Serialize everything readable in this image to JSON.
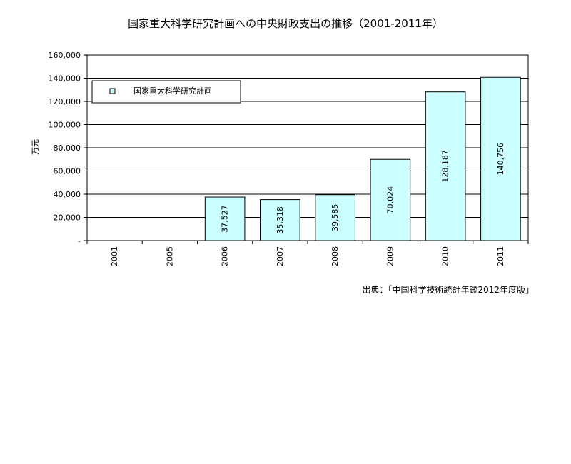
{
  "chart_data": {
    "type": "bar",
    "title": "国家重大科学研究計画への中央財政支出の推移（2001-2011年）",
    "xlabel": "",
    "ylabel": "万元",
    "categories": [
      "2001",
      "2005",
      "2006",
      "2007",
      "2008",
      "2009",
      "2010",
      "2011"
    ],
    "series": [
      {
        "name": "国家重大科学研究計画",
        "values": [
          null,
          null,
          37527,
          35318,
          39585,
          70024,
          128187,
          140756
        ],
        "value_labels": [
          "",
          "",
          "37,527",
          "35,318",
          "39,585",
          "70,024",
          "128,187",
          "140,756"
        ]
      }
    ],
    "ylim": [
      0,
      160000
    ],
    "yticks": [
      0,
      20000,
      40000,
      60000,
      80000,
      100000,
      120000,
      140000,
      160000
    ],
    "ytick_labels": [
      "-",
      "20,000",
      "40,000",
      "60,000",
      "80,000",
      "100,000",
      "120,000",
      "140,000",
      "160,000"
    ],
    "grid": true,
    "legend_position": "top-left",
    "bar_color": "#ccffff",
    "bar_edge_color": "#000000",
    "source": "出典：「中国科学技術統計年鑑2012年度版」"
  }
}
